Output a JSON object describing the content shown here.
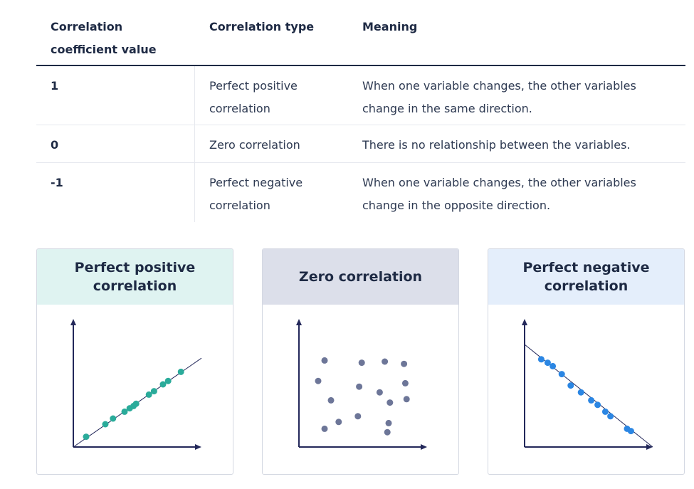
{
  "table": {
    "headers": {
      "value": "Correlation coefficient value",
      "type": "Correlation type",
      "meaning": "Meaning"
    },
    "rows": [
      {
        "value": "1",
        "type": "Perfect positive correlation",
        "meaning": "When one variable changes, the other variables change in the same direction."
      },
      {
        "value": "0",
        "type": "Zero correlation",
        "meaning": "There is no relationship between the variables."
      },
      {
        "value": "-1",
        "type": "Perfect negative correlation",
        "meaning": "When one variable changes, the other variables change in the opposite direction."
      }
    ]
  },
  "cards": [
    {
      "title": "Perfect positive correlation",
      "header_color": "#dff3f1",
      "point_color": "#2aab9a",
      "kind": "positive"
    },
    {
      "title": "Zero correlation",
      "header_color": "#dcdfea",
      "point_color": "#6d7698",
      "kind": "zero"
    },
    {
      "title": "Perfect negative correlation",
      "header_color": "#e4eefb",
      "point_color": "#2b86e3",
      "kind": "negative"
    }
  ],
  "chart_data": [
    {
      "type": "scatter",
      "title": "Perfect positive correlation",
      "xlabel": "",
      "ylabel": "",
      "xlim": [
        0,
        100
      ],
      "ylim": [
        0,
        100
      ],
      "trendline": [
        [
          0,
          0
        ],
        [
          100,
          78
        ]
      ],
      "x": [
        10,
        25,
        31,
        40,
        44,
        47,
        49,
        59,
        63,
        70,
        74,
        84
      ],
      "y": [
        9,
        20,
        25,
        31,
        34,
        36,
        38,
        46,
        49,
        55,
        58,
        66
      ]
    },
    {
      "type": "scatter",
      "title": "Zero correlation",
      "xlabel": "",
      "ylabel": "",
      "xlim": [
        0,
        100
      ],
      "ylim": [
        0,
        100
      ],
      "x": [
        20,
        49,
        67,
        82,
        15,
        47,
        83,
        25,
        63,
        71,
        84,
        46,
        31,
        70,
        20,
        69
      ],
      "y": [
        76,
        74,
        75,
        73,
        58,
        53,
        56,
        41,
        48,
        39,
        42,
        27,
        22,
        21,
        16,
        13
      ]
    },
    {
      "type": "scatter",
      "title": "Perfect negative correlation",
      "xlabel": "",
      "ylabel": "",
      "xlim": [
        0,
        100
      ],
      "ylim": [
        0,
        100
      ],
      "trendline": [
        [
          0,
          90
        ],
        [
          100,
          0
        ]
      ],
      "x": [
        13,
        18,
        22,
        29,
        36,
        44,
        52,
        57,
        63,
        67,
        80,
        83
      ],
      "y": [
        77,
        74,
        71,
        64,
        54,
        48,
        41,
        37,
        31,
        27,
        16,
        14
      ]
    }
  ]
}
